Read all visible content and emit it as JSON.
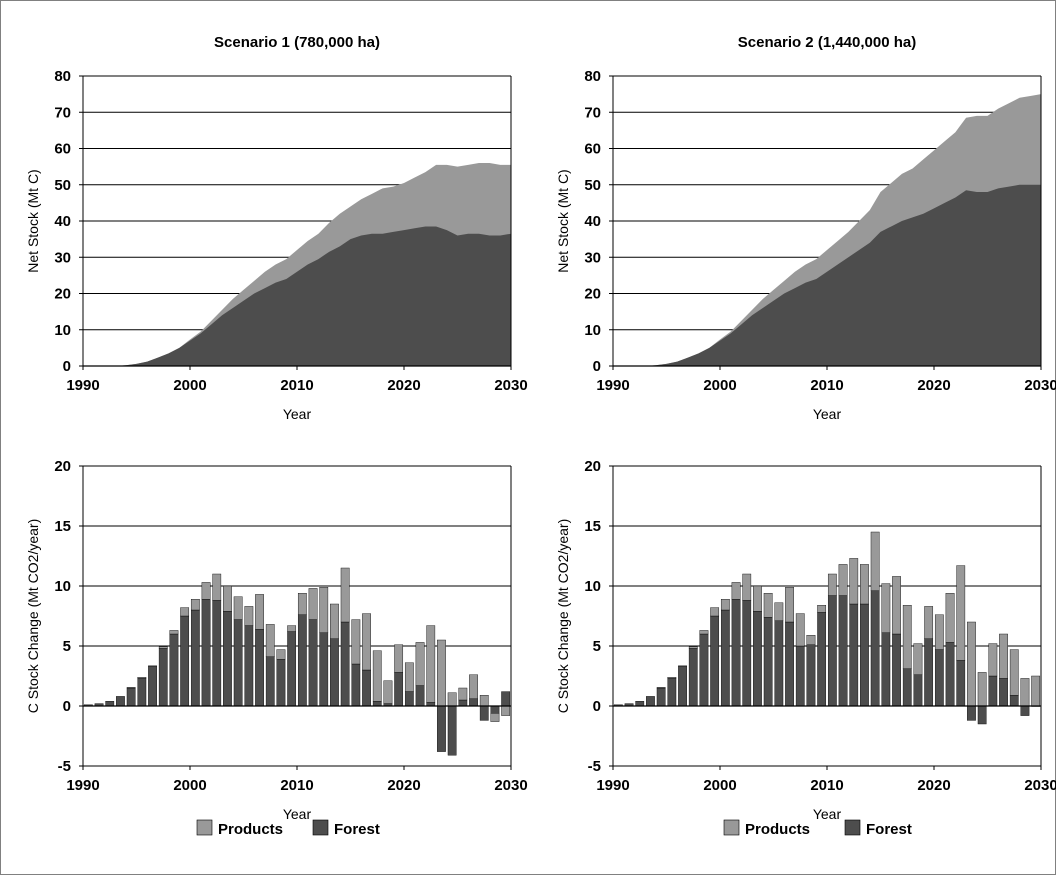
{
  "colors": {
    "products": "#999999",
    "forest": "#4d4d4d",
    "grid": "#000000",
    "frame": "#808080"
  },
  "legend": {
    "products": "Products",
    "forest": "Forest"
  },
  "chart_data": [
    {
      "type": "area",
      "title": "Scenario 1 (780,000 ha)",
      "xlabel": "Year",
      "ylabel": "Net Stock (Mt C)",
      "xlim": [
        1990,
        2030
      ],
      "ylim": [
        0,
        80
      ],
      "xticks": [
        "1990",
        "2000",
        "2010",
        "2020",
        "2030"
      ],
      "yticks": [
        "0",
        "10",
        "20",
        "30",
        "40",
        "50",
        "60",
        "70",
        "80"
      ],
      "grid": true,
      "stacked": true,
      "x": [
        1990,
        1991,
        1992,
        1993,
        1994,
        1995,
        1996,
        1997,
        1998,
        1999,
        2000,
        2001,
        2002,
        2003,
        2004,
        2005,
        2006,
        2007,
        2008,
        2009,
        2010,
        2011,
        2012,
        2013,
        2014,
        2015,
        2016,
        2017,
        2018,
        2019,
        2020,
        2021,
        2022,
        2023,
        2024,
        2025,
        2026,
        2027,
        2028,
        2029,
        2030
      ],
      "series": [
        {
          "name": "Forest",
          "values": [
            0,
            0,
            0,
            0,
            0.2,
            0.6,
            1.2,
            2.3,
            3.5,
            5,
            7,
            9,
            11.5,
            14,
            16,
            18,
            20,
            21.5,
            23,
            24,
            26,
            28,
            29.5,
            31.5,
            33,
            35,
            36,
            36.5,
            36.5,
            37,
            37.5,
            38,
            38.5,
            38.5,
            37.5,
            36,
            36.5,
            36.5,
            36,
            36,
            36.5
          ]
        },
        {
          "name": "Products",
          "values": [
            0,
            0,
            0,
            0,
            0,
            0,
            0,
            0,
            0,
            0,
            0.3,
            0.5,
            1,
            1.5,
            2.5,
            3,
            3.5,
            4.5,
            5,
            5.5,
            6,
            6.5,
            7,
            8,
            9,
            9,
            10,
            11,
            12.5,
            12.5,
            13,
            14,
            15,
            17,
            18,
            19,
            19,
            19.5,
            20,
            19.5,
            19
          ]
        }
      ]
    },
    {
      "type": "area",
      "title": "Scenario 2 (1,440,000 ha)",
      "xlabel": "Year",
      "ylabel": "Net Stock (Mt C)",
      "xlim": [
        1990,
        2030
      ],
      "ylim": [
        0,
        80
      ],
      "xticks": [
        "1990",
        "2000",
        "2010",
        "2020",
        "2030"
      ],
      "yticks": [
        "0",
        "10",
        "20",
        "30",
        "40",
        "50",
        "60",
        "70",
        "80"
      ],
      "grid": true,
      "stacked": true,
      "x": [
        1990,
        1991,
        1992,
        1993,
        1994,
        1995,
        1996,
        1997,
        1998,
        1999,
        2000,
        2001,
        2002,
        2003,
        2004,
        2005,
        2006,
        2007,
        2008,
        2009,
        2010,
        2011,
        2012,
        2013,
        2014,
        2015,
        2016,
        2017,
        2018,
        2019,
        2020,
        2021,
        2022,
        2023,
        2024,
        2025,
        2026,
        2027,
        2028,
        2029,
        2030
      ],
      "series": [
        {
          "name": "Forest",
          "values": [
            0,
            0,
            0,
            0,
            0.2,
            0.6,
            1.2,
            2.3,
            3.5,
            5,
            7,
            9,
            11.5,
            14,
            16,
            18,
            20,
            21.5,
            23,
            24,
            26,
            28,
            30,
            32,
            34,
            37,
            38.5,
            40,
            41,
            42,
            43.5,
            45,
            46.5,
            48.5,
            48,
            48,
            49,
            49.5,
            50,
            50,
            50
          ]
        },
        {
          "name": "Products",
          "values": [
            0,
            0,
            0,
            0,
            0,
            0,
            0,
            0,
            0,
            0,
            0.3,
            0.5,
            1,
            1.5,
            2.5,
            3,
            3.5,
            4.5,
            5,
            5.5,
            6,
            6.5,
            7,
            8,
            9,
            11,
            12,
            13,
            13.5,
            15,
            16,
            17,
            18,
            20,
            21,
            21,
            22,
            23,
            24,
            24.5,
            25
          ]
        }
      ]
    },
    {
      "type": "bar",
      "stacked": true,
      "title": "",
      "xlabel": "Year",
      "ylabel": "C Stock Change (Mt CO2/year)",
      "xlim": [
        1990,
        2030
      ],
      "ylim": [
        -5,
        20
      ],
      "xticks": [
        "1990",
        "2000",
        "2010",
        "2020",
        "2030"
      ],
      "yticks": [
        "-5",
        "0",
        "5",
        "10",
        "15",
        "20"
      ],
      "grid": true,
      "legend": "bottom",
      "x": [
        1991,
        1992,
        1993,
        1994,
        1995,
        1996,
        1997,
        1998,
        1999,
        2000,
        2001,
        2002,
        2003,
        2004,
        2005,
        2006,
        2007,
        2008,
        2009,
        2010,
        2011,
        2012,
        2013,
        2014,
        2015,
        2016,
        2017,
        2018,
        2019,
        2020,
        2021,
        2022,
        2023,
        2024,
        2025,
        2026,
        2027,
        2028,
        2029,
        2030
      ],
      "series": [
        {
          "name": "Forest",
          "values": [
            0.1,
            0.2,
            0.4,
            0.8,
            1.5,
            2.3,
            3.3,
            4.8,
            6,
            7.5,
            8,
            8.9,
            8.8,
            7.9,
            7.2,
            6.7,
            6.4,
            4.1,
            3.9,
            6.2,
            7.6,
            7.2,
            6.1,
            5.6,
            7,
            3.5,
            3,
            0.4,
            0.2,
            2.8,
            1.2,
            1.7,
            0.3,
            -3.8,
            -4.1,
            0.5,
            0.6,
            -1.2,
            -0.6,
            1.2
          ]
        },
        {
          "name": "Products",
          "values": [
            0,
            0,
            0,
            0,
            0.05,
            0.1,
            0.05,
            0.15,
            0.3,
            0.7,
            0.9,
            1.4,
            2.2,
            2.1,
            1.9,
            1.6,
            2.9,
            2.7,
            0.8,
            0.5,
            1.8,
            2.6,
            3.8,
            2.9,
            4.5,
            3.7,
            4.7,
            4.2,
            1.9,
            2.3,
            2.4,
            3.6,
            6.4,
            5.5,
            1.1,
            1,
            2,
            0.9,
            -0.7,
            -0.8
          ]
        }
      ]
    },
    {
      "type": "bar",
      "stacked": true,
      "title": "",
      "xlabel": "Year",
      "ylabel": "C Stock Change (Mt CO2/year)",
      "xlim": [
        1990,
        2030
      ],
      "ylim": [
        -5,
        20
      ],
      "xticks": [
        "1990",
        "2000",
        "2010",
        "2020",
        "2030"
      ],
      "yticks": [
        "-5",
        "0",
        "5",
        "10",
        "15",
        "20"
      ],
      "grid": true,
      "legend": "bottom",
      "x": [
        1991,
        1992,
        1993,
        1994,
        1995,
        1996,
        1997,
        1998,
        1999,
        2000,
        2001,
        2002,
        2003,
        2004,
        2005,
        2006,
        2007,
        2008,
        2009,
        2010,
        2011,
        2012,
        2013,
        2014,
        2015,
        2016,
        2017,
        2018,
        2019,
        2020,
        2021,
        2022,
        2023,
        2024,
        2025,
        2026,
        2027,
        2028,
        2029,
        2030
      ],
      "series": [
        {
          "name": "Forest",
          "values": [
            0.1,
            0.2,
            0.4,
            0.8,
            1.5,
            2.3,
            3.3,
            4.8,
            6,
            7.5,
            8,
            8.9,
            8.8,
            7.9,
            7.4,
            7.1,
            7,
            5,
            5.1,
            7.8,
            9.2,
            9.2,
            8.5,
            8.5,
            9.6,
            6.1,
            6,
            3.1,
            2.6,
            5.6,
            4.7,
            5.3,
            3.8,
            -1.2,
            -1.5,
            2.5,
            2.3,
            0.9,
            -0.8,
            0
          ]
        },
        {
          "name": "Products",
          "values": [
            0,
            0,
            0,
            0,
            0.05,
            0.1,
            0.05,
            0.15,
            0.3,
            0.7,
            0.9,
            1.4,
            2.2,
            2.1,
            2,
            1.5,
            2.9,
            2.7,
            0.8,
            0.6,
            1.8,
            2.6,
            3.8,
            3.3,
            4.9,
            4.1,
            4.8,
            5.3,
            2.6,
            2.7,
            2.9,
            4.1,
            7.9,
            7,
            2.8,
            2.7,
            3.7,
            3.8,
            2.3,
            2.5
          ]
        }
      ]
    }
  ]
}
